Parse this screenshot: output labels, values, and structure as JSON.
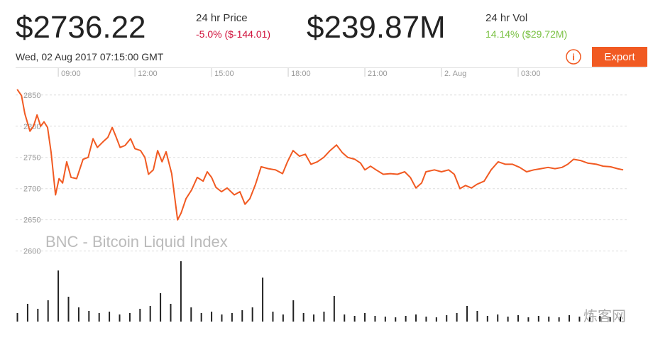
{
  "header": {
    "price": "$2736.22",
    "price_label": "24 hr Price",
    "price_change": "-5.0% ($-144.01)",
    "price_change_color": "#d0103a",
    "volume": "$239.87M",
    "volume_label": "24 hr Vol",
    "volume_change": "14.14% ($29.72M)",
    "volume_change_color": "#7ac143",
    "timestamp": "Wed, 02 Aug 2017 07:15:00 GMT",
    "info_icon": "i",
    "export_button": "Export"
  },
  "chart_data": {
    "type": "line",
    "watermark": "BNC - Bitcoin Liquid Index",
    "overlay_watermark": "炼客网",
    "xlim": [
      7.33,
      31.25
    ],
    "xticks": [
      {
        "value": 9,
        "label": "09:00"
      },
      {
        "value": 12,
        "label": "12:00"
      },
      {
        "value": 15,
        "label": "15:00"
      },
      {
        "value": 18,
        "label": "18:00"
      },
      {
        "value": 21,
        "label": "21:00"
      },
      {
        "value": 24,
        "label": "2. Aug"
      },
      {
        "value": 27,
        "label": "03:00"
      }
    ],
    "ylim": [
      2487,
      2893
    ],
    "yticks": [
      2600,
      2650,
      2700,
      2750,
      2800,
      2850
    ],
    "y2lim": [
      0,
      100
    ],
    "grid": true,
    "series": [
      {
        "color": "#f15a22",
        "x": [
          7.39,
          7.56,
          7.69,
          7.89,
          8.03,
          8.17,
          8.31,
          8.44,
          8.58,
          8.72,
          8.89,
          9.03,
          9.17,
          9.33,
          9.5,
          9.72,
          9.97,
          10.17,
          10.36,
          10.53,
          10.75,
          10.94,
          11.11,
          11.25,
          11.42,
          11.61,
          11.83,
          12.0,
          12.22,
          12.39,
          12.53,
          12.72,
          12.89,
          13.06,
          13.22,
          13.44,
          13.67,
          13.81,
          14.0,
          14.22,
          14.44,
          14.67,
          14.83,
          15.0,
          15.17,
          15.39,
          15.61,
          15.89,
          16.11,
          16.31,
          16.5,
          16.72,
          16.94,
          17.22,
          17.5,
          17.78,
          17.97,
          18.19,
          18.44,
          18.67,
          18.89,
          19.14,
          19.39,
          19.64,
          19.89,
          20.11,
          20.33,
          20.61,
          20.83,
          21.0,
          21.22,
          21.44,
          21.72,
          22.0,
          22.28,
          22.56,
          22.78,
          23.0,
          23.22,
          23.39,
          23.72,
          24.0,
          24.28,
          24.5,
          24.72,
          24.94,
          25.17,
          25.39,
          25.67,
          25.94,
          26.22,
          26.5,
          26.78,
          27.06,
          27.33,
          27.61,
          27.89,
          28.17,
          28.44,
          28.72,
          28.94,
          29.17,
          29.44,
          29.72,
          30.06,
          30.33,
          30.61,
          30.89,
          31.11
        ],
        "values": [
          2859,
          2849,
          2820,
          2792,
          2800,
          2818,
          2800,
          2807,
          2798,
          2758,
          2690,
          2716,
          2709,
          2743,
          2718,
          2716,
          2747,
          2750,
          2780,
          2766,
          2775,
          2782,
          2798,
          2784,
          2766,
          2769,
          2780,
          2764,
          2761,
          2750,
          2723,
          2730,
          2761,
          2743,
          2759,
          2724,
          2650,
          2661,
          2684,
          2698,
          2718,
          2712,
          2727,
          2718,
          2702,
          2695,
          2701,
          2690,
          2695,
          2675,
          2684,
          2707,
          2735,
          2732,
          2730,
          2724,
          2743,
          2761,
          2752,
          2755,
          2739,
          2743,
          2750,
          2761,
          2770,
          2758,
          2750,
          2747,
          2741,
          2730,
          2736,
          2730,
          2723,
          2724,
          2723,
          2727,
          2718,
          2701,
          2709,
          2727,
          2730,
          2727,
          2730,
          2723,
          2700,
          2705,
          2701,
          2707,
          2712,
          2730,
          2743,
          2739,
          2739,
          2734,
          2727,
          2730,
          2732,
          2734,
          2732,
          2734,
          2739,
          2747,
          2745,
          2741,
          2739,
          2736,
          2735,
          2732,
          2730
        ]
      },
      {
        "type": "bar",
        "axis": "y2",
        "color": "#222222",
        "x": [
          7.4,
          7.8,
          8.2,
          8.6,
          9.0,
          9.4,
          9.8,
          10.2,
          10.6,
          11.0,
          11.4,
          11.8,
          12.2,
          12.6,
          13.0,
          13.4,
          13.8,
          14.2,
          14.6,
          15.0,
          15.4,
          15.8,
          16.2,
          16.6,
          17.0,
          17.4,
          17.8,
          18.2,
          18.6,
          19.0,
          19.4,
          19.8,
          20.2,
          20.6,
          21.0,
          21.4,
          21.8,
          22.2,
          22.6,
          23.0,
          23.4,
          23.8,
          24.2,
          24.6,
          25.0,
          25.4,
          25.8,
          26.2,
          26.6,
          27.0,
          27.4,
          27.8,
          28.2,
          28.6,
          29.0,
          29.4,
          29.8,
          30.2,
          30.6,
          31.0
        ],
        "values": [
          12,
          25,
          18,
          30,
          72,
          35,
          20,
          15,
          12,
          14,
          10,
          12,
          18,
          22,
          40,
          25,
          85,
          20,
          12,
          14,
          10,
          12,
          16,
          20,
          62,
          14,
          10,
          30,
          12,
          10,
          14,
          36,
          10,
          8,
          12,
          8,
          7,
          6,
          8,
          10,
          7,
          6,
          9,
          12,
          22,
          15,
          8,
          10,
          7,
          9,
          6,
          8,
          7,
          6,
          9,
          7,
          6,
          8,
          6,
          7
        ]
      }
    ]
  }
}
